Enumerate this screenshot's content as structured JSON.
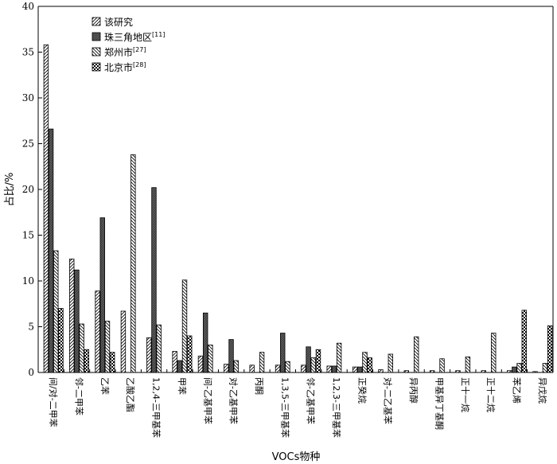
{
  "chart_data": {
    "type": "bar",
    "xlabel": "VOCs物种",
    "ylabel": "占比/%",
    "ylim": [
      0,
      40
    ],
    "yticks": [
      0,
      5,
      10,
      15,
      20,
      25,
      30,
      35,
      40
    ],
    "grid": false,
    "legend_position": "top-left",
    "categories": [
      "间/对-二甲苯",
      "邻-二甲苯",
      "乙苯",
      "乙酸乙酯",
      "1,2,4-三甲基苯",
      "甲苯",
      "间-乙基甲苯",
      "对-乙基甲苯",
      "丙酮",
      "1,3,5-三甲基苯",
      "邻-乙基甲苯",
      "1,2,3-三甲基苯",
      "正癸烷",
      "对-二乙基苯",
      "异丙醇",
      "甲基异丁基酮",
      "正十一烷",
      "正十二烷",
      "苯乙烯",
      "异戊烷"
    ],
    "series": [
      {
        "name": "该研究",
        "ref": "",
        "pattern": "diag-light",
        "values": [
          35.8,
          12.4,
          8.9,
          6.7,
          3.8,
          2.3,
          1.8,
          0.9,
          0.8,
          0.8,
          0.8,
          0.7,
          0.6,
          0.3,
          0.2,
          0.2,
          0.2,
          0.2,
          0.2,
          0.1
        ]
      },
      {
        "name": "珠三角地区",
        "ref": "[11]",
        "pattern": "dark",
        "values": [
          26.6,
          11.2,
          16.9,
          0,
          20.2,
          1.3,
          6.5,
          3.6,
          0,
          4.3,
          2.8,
          0.7,
          0.6,
          0,
          0,
          0,
          0,
          0,
          0.6,
          0
        ]
      },
      {
        "name": "郑州市",
        "ref": "[27]",
        "pattern": "diag-back",
        "values": [
          13.3,
          5.3,
          5.6,
          23.8,
          5.2,
          10.1,
          3.0,
          1.3,
          2.2,
          1.2,
          1.6,
          3.2,
          2.2,
          2.0,
          3.9,
          1.5,
          1.7,
          4.3,
          1.0,
          1.0
        ]
      },
      {
        "name": "北京市",
        "ref": "[28]",
        "pattern": "checker",
        "values": [
          7.0,
          2.5,
          2.2,
          0,
          0,
          4.0,
          0,
          0,
          0,
          0,
          2.5,
          0,
          1.6,
          0,
          0,
          0,
          0,
          0,
          6.8,
          5.1
        ]
      }
    ],
    "colors": {
      "ink": "#000000",
      "dark_fill": "#555555",
      "background": "#ffffff"
    }
  }
}
